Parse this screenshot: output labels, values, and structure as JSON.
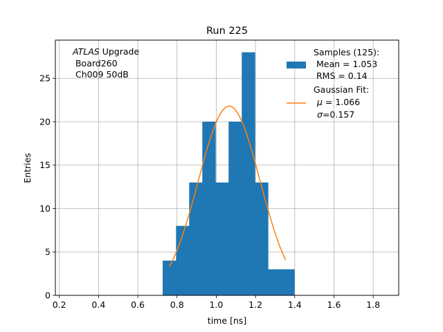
{
  "chart_data": {
    "type": "bar",
    "title": "Run 225",
    "xlabel": "time [ns]",
    "ylabel": "Entries",
    "xlim": [
      0.18,
      1.93
    ],
    "ylim": [
      0,
      29.4
    ],
    "xticks": [
      "0.2",
      "0.4",
      "0.6",
      "0.8",
      "1.0",
      "1.2",
      "1.4",
      "1.6",
      "1.8"
    ],
    "yticks": [
      "0",
      "5",
      "10",
      "15",
      "20",
      "25"
    ],
    "grid": true,
    "histogram": {
      "bins": [
        {
          "x0": 0.727,
          "x1": 0.795,
          "count": 4
        },
        {
          "x0": 0.795,
          "x1": 0.862,
          "count": 8
        },
        {
          "x0": 0.862,
          "x1": 0.929,
          "count": 13
        },
        {
          "x0": 0.929,
          "x1": 0.996,
          "count": 20
        },
        {
          "x0": 0.996,
          "x1": 1.063,
          "count": 13
        },
        {
          "x0": 1.063,
          "x1": 1.13,
          "count": 20
        },
        {
          "x0": 1.13,
          "x1": 1.197,
          "count": 28
        },
        {
          "x0": 1.197,
          "x1": 1.264,
          "count": 13
        },
        {
          "x0": 1.264,
          "x1": 1.331,
          "count": 3
        },
        {
          "x0": 1.331,
          "x1": 1.398,
          "count": 3
        }
      ],
      "color": "#1f77b4"
    },
    "fit": {
      "mu": 1.066,
      "sigma": 0.157,
      "amplitude": 21.8,
      "x_range": [
        0.761,
        1.354
      ],
      "color": "#ff7f0e"
    },
    "legend": {
      "position": "top-right",
      "samples": {
        "line1": "Samples (125):",
        "line2": " Mean = 1.053",
        "line3": " RMS = 0.14"
      },
      "fit": {
        "line1": "Gaussian Fit:",
        "line2_symbol": "μ",
        "line2_value": " = 1.066",
        "line3_symbol": "σ",
        "line3_value": "=0.157"
      }
    },
    "annotation": {
      "atlas": "ATLAS",
      "upgrade": " Upgrade",
      "board": " Board260",
      "channel": " Ch009 50dB"
    }
  }
}
